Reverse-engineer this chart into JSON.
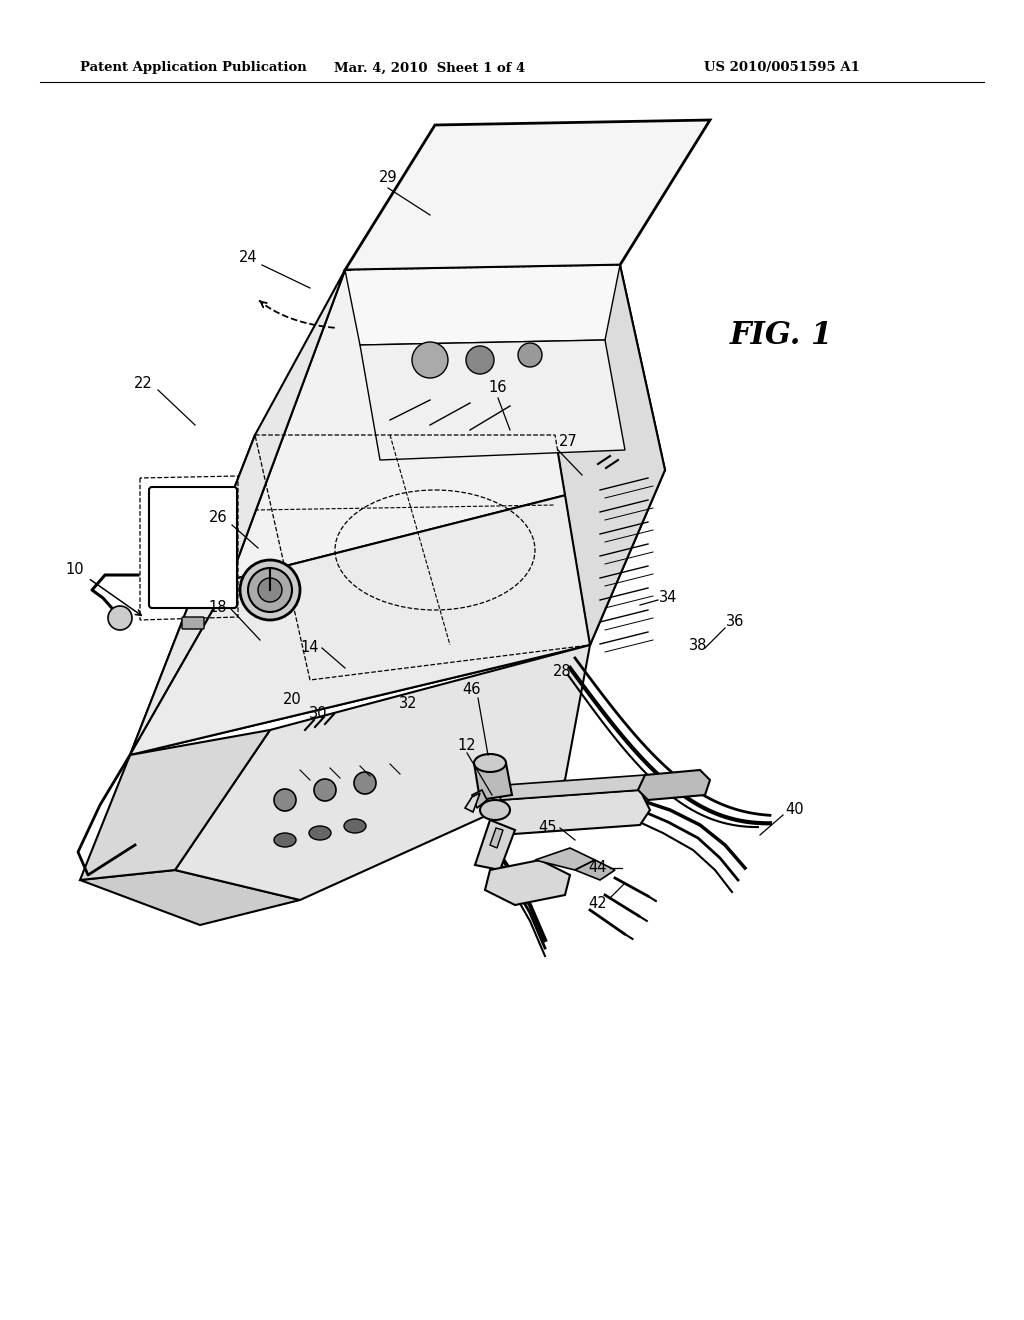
{
  "bg_color": "#ffffff",
  "header_left": "Patent Application Publication",
  "header_center": "Mar. 4, 2010  Sheet 1 of 4",
  "header_right": "US 2010/0051595 A1",
  "fig_label": "FIG. 1"
}
